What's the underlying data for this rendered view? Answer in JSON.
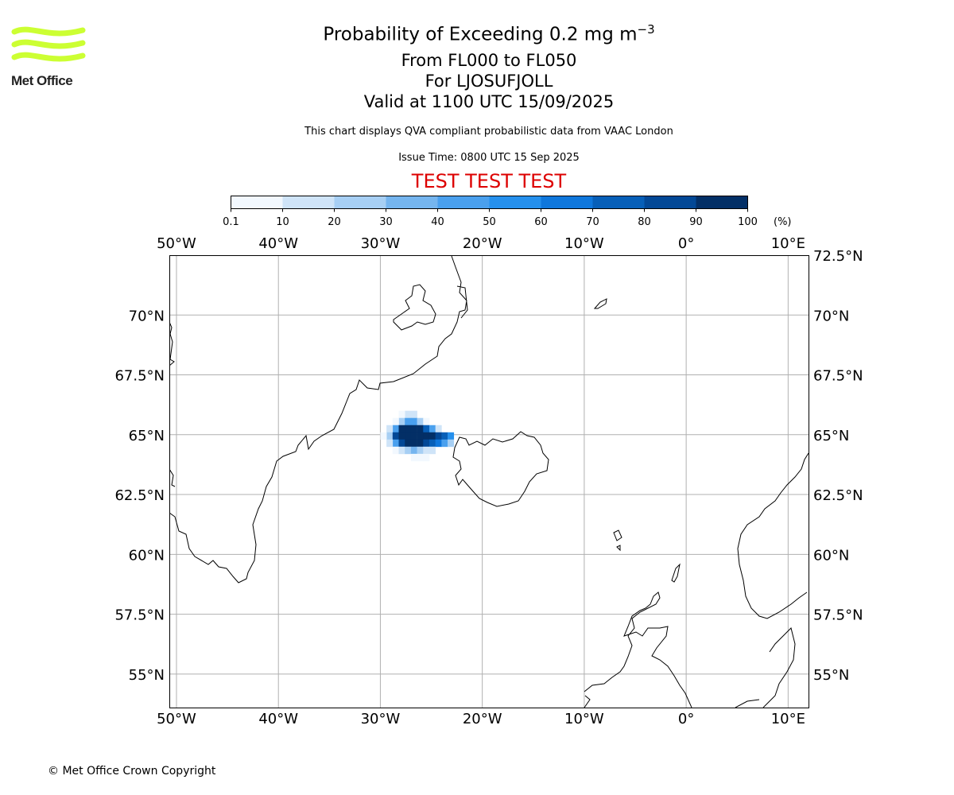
{
  "header": {
    "title_main": "Probability of Exceeding 0.2 mg m",
    "title_exp": "−3",
    "line_fl": "From FL000 to FL050",
    "line_for": "For LJOSUFJOLL",
    "line_valid": "Valid at 1100 UTC 15/09/2025",
    "note": "This chart displays QVA compliant probabilistic data from VAAC London",
    "issue_time": "Issue Time: 0800 UTC 15 Sep 2025",
    "test_banner": "TEST TEST TEST",
    "test_color": "#dd0000"
  },
  "logo": {
    "text": "Met Office",
    "color": "#ccff33"
  },
  "footer": {
    "copyright": "© Met Office Crown Copyright"
  },
  "colorbar": {
    "ticks": [
      "0.1",
      "10",
      "20",
      "30",
      "40",
      "50",
      "60",
      "70",
      "80",
      "90",
      "100"
    ],
    "unit": "(%)",
    "colors": [
      "#f2f8fe",
      "#cfe4f8",
      "#a7cff4",
      "#75b5ef",
      "#4aa0ee",
      "#2590ed",
      "#0f77dc",
      "#075fb8",
      "#034896",
      "#032f66"
    ]
  },
  "chart_data": {
    "type": "heatmap",
    "projection": "equirectangular",
    "lon_range": [
      -50.7,
      12
    ],
    "lat_range": [
      53.6,
      72.5
    ],
    "xticks": [
      -50,
      -40,
      -30,
      -20,
      -10,
      0,
      10
    ],
    "xtick_labels": [
      "50°W",
      "40°W",
      "30°W",
      "20°W",
      "10°W",
      "0°",
      "10°E"
    ],
    "yticks": [
      55,
      57.5,
      60,
      62.5,
      65,
      67.5,
      70,
      72.5
    ],
    "ytick_labels": [
      "55°N",
      "57.5°N",
      "60°N",
      "62.5°N",
      "65°N",
      "67.5°N",
      "70°N",
      "72.5°N"
    ],
    "grid": true,
    "value_unit": "%",
    "cell_size_deg": [
      0.6,
      0.3
    ],
    "cells": [
      {
        "lon": -27.3,
        "lat": 65.85,
        "p": 10
      },
      {
        "lon": -26.7,
        "lat": 65.85,
        "p": 10
      },
      {
        "lon": -27.9,
        "lat": 65.85,
        "p": 5
      },
      {
        "lon": -27.9,
        "lat": 65.55,
        "p": 20
      },
      {
        "lon": -27.3,
        "lat": 65.55,
        "p": 45
      },
      {
        "lon": -26.7,
        "lat": 65.55,
        "p": 45
      },
      {
        "lon": -26.1,
        "lat": 65.55,
        "p": 25
      },
      {
        "lon": -28.5,
        "lat": 65.55,
        "p": 5
      },
      {
        "lon": -25.5,
        "lat": 65.55,
        "p": 5
      },
      {
        "lon": -28.5,
        "lat": 65.25,
        "p": 40
      },
      {
        "lon": -27.9,
        "lat": 65.25,
        "p": 92
      },
      {
        "lon": -27.3,
        "lat": 65.25,
        "p": 97
      },
      {
        "lon": -26.7,
        "lat": 65.25,
        "p": 97
      },
      {
        "lon": -26.1,
        "lat": 65.25,
        "p": 92
      },
      {
        "lon": -25.5,
        "lat": 65.25,
        "p": 75
      },
      {
        "lon": -24.9,
        "lat": 65.25,
        "p": 45
      },
      {
        "lon": -24.3,
        "lat": 65.25,
        "p": 15
      },
      {
        "lon": -29.1,
        "lat": 65.25,
        "p": 10
      },
      {
        "lon": -29.1,
        "lat": 64.95,
        "p": 25
      },
      {
        "lon": -28.5,
        "lat": 64.95,
        "p": 85
      },
      {
        "lon": -27.9,
        "lat": 64.95,
        "p": 98
      },
      {
        "lon": -27.3,
        "lat": 64.95,
        "p": 98
      },
      {
        "lon": -26.7,
        "lat": 64.95,
        "p": 98
      },
      {
        "lon": -26.1,
        "lat": 64.95,
        "p": 97
      },
      {
        "lon": -25.5,
        "lat": 64.95,
        "p": 95
      },
      {
        "lon": -24.9,
        "lat": 64.95,
        "p": 92
      },
      {
        "lon": -24.3,
        "lat": 64.95,
        "p": 85
      },
      {
        "lon": -23.7,
        "lat": 64.95,
        "p": 70
      },
      {
        "lon": -23.1,
        "lat": 64.95,
        "p": 55
      },
      {
        "lon": -29.7,
        "lat": 64.95,
        "p": 5
      },
      {
        "lon": -28.5,
        "lat": 64.65,
        "p": 45
      },
      {
        "lon": -27.9,
        "lat": 64.65,
        "p": 80
      },
      {
        "lon": -27.3,
        "lat": 64.65,
        "p": 92
      },
      {
        "lon": -26.7,
        "lat": 64.65,
        "p": 95
      },
      {
        "lon": -26.1,
        "lat": 64.65,
        "p": 92
      },
      {
        "lon": -25.5,
        "lat": 64.65,
        "p": 85
      },
      {
        "lon": -24.9,
        "lat": 64.65,
        "p": 75
      },
      {
        "lon": -24.3,
        "lat": 64.65,
        "p": 65
      },
      {
        "lon": -23.7,
        "lat": 64.65,
        "p": 45
      },
      {
        "lon": -23.1,
        "lat": 64.65,
        "p": 25
      },
      {
        "lon": -29.1,
        "lat": 64.65,
        "p": 10
      },
      {
        "lon": -28.5,
        "lat": 64.35,
        "p": 5
      },
      {
        "lon": -27.9,
        "lat": 64.35,
        "p": 15
      },
      {
        "lon": -27.3,
        "lat": 64.35,
        "p": 25
      },
      {
        "lon": -26.7,
        "lat": 64.35,
        "p": 30
      },
      {
        "lon": -26.1,
        "lat": 64.35,
        "p": 20
      },
      {
        "lon": -25.5,
        "lat": 64.35,
        "p": 15
      },
      {
        "lon": -24.9,
        "lat": 64.35,
        "p": 10
      },
      {
        "lon": -26.7,
        "lat": 64.05,
        "p": 5
      },
      {
        "lon": -26.1,
        "lat": 64.05,
        "p": 5
      },
      {
        "lon": -25.5,
        "lat": 64.05,
        "p": 5
      }
    ]
  }
}
